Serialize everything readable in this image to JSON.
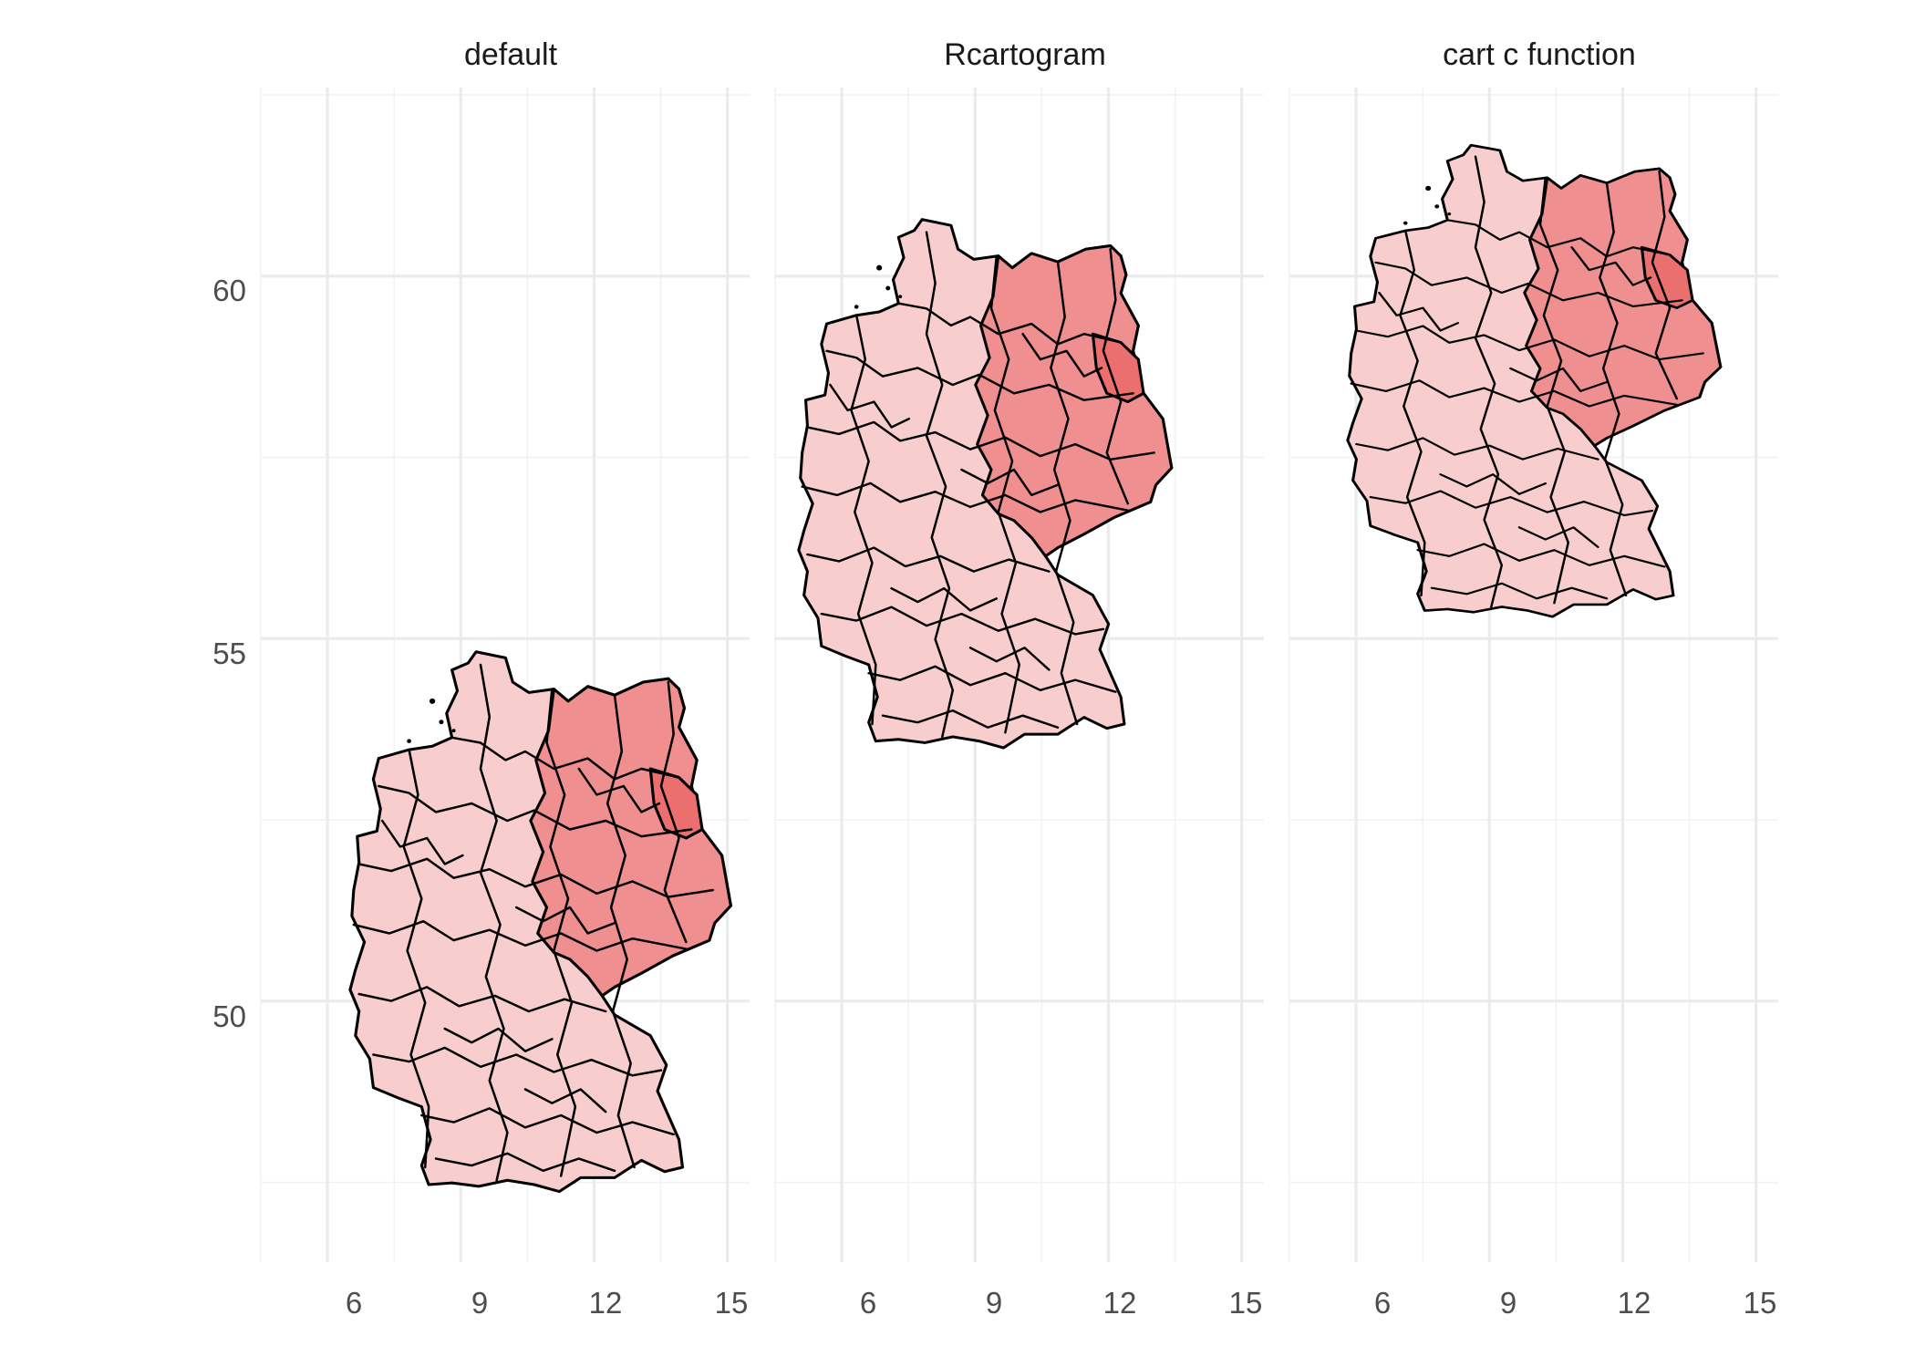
{
  "chart_data": {
    "type": "map",
    "facets": [
      {
        "title": "default"
      },
      {
        "title": "Rcartogram"
      },
      {
        "title": "cart c function"
      }
    ],
    "x_ticks": [
      6,
      9,
      12,
      15
    ],
    "y_ticks": [
      50,
      55,
      60
    ],
    "x_tick_labels": [
      "6",
      "9",
      "12",
      "15"
    ],
    "y_tick_labels": [
      "50",
      "55",
      "60"
    ],
    "xlim": [
      4.5,
      15.5
    ],
    "ylim": [
      46.4,
      62.6
    ],
    "grid": true,
    "fill_scale": [
      "#fde8e8",
      "#f7b7b7",
      "#ee6e6e"
    ],
    "border_color": "#000000"
  }
}
